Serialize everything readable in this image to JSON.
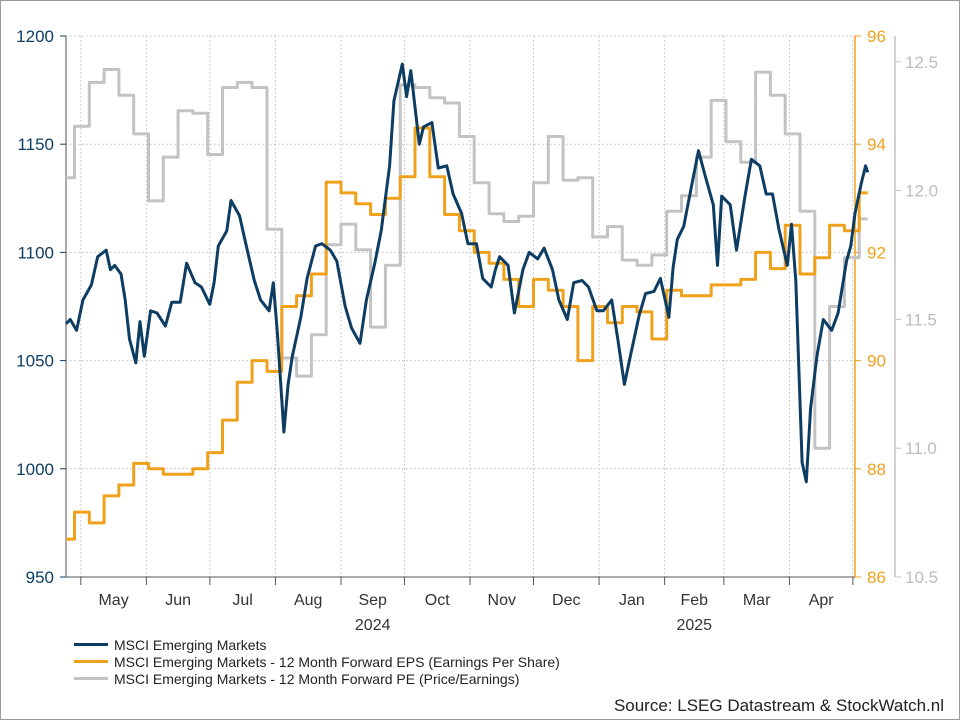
{
  "chart_data": {
    "type": "line",
    "x_axis": {
      "months": [
        "May",
        "Jun",
        "Jul",
        "Aug",
        "Sep",
        "Oct",
        "Nov",
        "Dec",
        "Jan",
        "Feb",
        "Mar",
        "Apr"
      ],
      "years": [
        {
          "label": "2024",
          "under": "Sep"
        },
        {
          "label": "2025",
          "under": "Feb"
        }
      ],
      "start": "2024-04-24",
      "end": "2025-05-02",
      "grid": true
    },
    "axes": {
      "left": {
        "series": "MSCI Emerging Markets",
        "min": 950,
        "max": 1200,
        "ticks": [
          950,
          1000,
          1050,
          1100,
          1150,
          1200
        ],
        "color": "#0e3d63"
      },
      "right1": {
        "series": "MSCI Emerging Markets - 12 Month Forward EPS (Earnings Per Share)",
        "min": 86,
        "max": 96,
        "ticks": [
          86,
          88,
          90,
          92,
          94,
          96
        ],
        "color": "#f0a11c"
      },
      "right2": {
        "series": "MSCI Emerging Markets - 12 Month Forward PE (Price/Earnings)",
        "min": 10.5,
        "max": 12.6,
        "ticks": [
          "10.5",
          "11.0",
          "11.5",
          "12.0",
          "12.5"
        ],
        "color": "#c3c3c3"
      }
    },
    "series": [
      {
        "name": "MSCI Emerging Markets",
        "axis": "left",
        "color": "#0e3d63",
        "points": [
          [
            "2024-04-24",
            1067
          ],
          [
            "2024-04-26",
            1069
          ],
          [
            "2024-04-29",
            1064
          ],
          [
            "2024-05-02",
            1078
          ],
          [
            "2024-05-06",
            1085
          ],
          [
            "2024-05-09",
            1098
          ],
          [
            "2024-05-13",
            1101
          ],
          [
            "2024-05-15",
            1092
          ],
          [
            "2024-05-17",
            1094
          ],
          [
            "2024-05-20",
            1090
          ],
          [
            "2024-05-22",
            1078
          ],
          [
            "2024-05-24",
            1060
          ],
          [
            "2024-05-27",
            1049
          ],
          [
            "2024-05-29",
            1068
          ],
          [
            "2024-05-31",
            1052
          ],
          [
            "2024-06-03",
            1073
          ],
          [
            "2024-06-06",
            1072
          ],
          [
            "2024-06-10",
            1066
          ],
          [
            "2024-06-13",
            1077
          ],
          [
            "2024-06-17",
            1077
          ],
          [
            "2024-06-20",
            1095
          ],
          [
            "2024-06-24",
            1086
          ],
          [
            "2024-06-27",
            1084
          ],
          [
            "2024-07-01",
            1076
          ],
          [
            "2024-07-03",
            1086
          ],
          [
            "2024-07-05",
            1103
          ],
          [
            "2024-07-09",
            1110
          ],
          [
            "2024-07-11",
            1124
          ],
          [
            "2024-07-15",
            1117
          ],
          [
            "2024-07-18",
            1104
          ],
          [
            "2024-07-22",
            1087
          ],
          [
            "2024-07-25",
            1078
          ],
          [
            "2024-07-29",
            1073
          ],
          [
            "2024-07-31",
            1086
          ],
          [
            "2024-08-02",
            1062
          ],
          [
            "2024-08-05",
            1017
          ],
          [
            "2024-08-07",
            1039
          ],
          [
            "2024-08-09",
            1052
          ],
          [
            "2024-08-13",
            1070
          ],
          [
            "2024-08-16",
            1088
          ],
          [
            "2024-08-20",
            1103
          ],
          [
            "2024-08-23",
            1104
          ],
          [
            "2024-08-27",
            1101
          ],
          [
            "2024-08-30",
            1096
          ],
          [
            "2024-09-03",
            1075
          ],
          [
            "2024-09-06",
            1065
          ],
          [
            "2024-09-10",
            1058
          ],
          [
            "2024-09-13",
            1078
          ],
          [
            "2024-09-17",
            1095
          ],
          [
            "2024-09-20",
            1110
          ],
          [
            "2024-09-24",
            1140
          ],
          [
            "2024-09-26",
            1170
          ],
          [
            "2024-09-30",
            1187
          ],
          [
            "2024-10-02",
            1172
          ],
          [
            "2024-10-04",
            1184
          ],
          [
            "2024-10-08",
            1150
          ],
          [
            "2024-10-10",
            1158
          ],
          [
            "2024-10-14",
            1160
          ],
          [
            "2024-10-17",
            1139
          ],
          [
            "2024-10-21",
            1140
          ],
          [
            "2024-10-24",
            1127
          ],
          [
            "2024-10-28",
            1118
          ],
          [
            "2024-10-31",
            1104
          ],
          [
            "2024-11-04",
            1104
          ],
          [
            "2024-11-07",
            1088
          ],
          [
            "2024-11-11",
            1084
          ],
          [
            "2024-11-13",
            1092
          ],
          [
            "2024-11-15",
            1098
          ],
          [
            "2024-11-19",
            1094
          ],
          [
            "2024-11-22",
            1072
          ],
          [
            "2024-11-26",
            1092
          ],
          [
            "2024-11-29",
            1100
          ],
          [
            "2024-12-03",
            1097
          ],
          [
            "2024-12-06",
            1102
          ],
          [
            "2024-12-10",
            1092
          ],
          [
            "2024-12-13",
            1078
          ],
          [
            "2024-12-17",
            1069
          ],
          [
            "2024-12-20",
            1086
          ],
          [
            "2024-12-24",
            1087
          ],
          [
            "2024-12-27",
            1084
          ],
          [
            "2024-12-31",
            1073
          ],
          [
            "2025-01-03",
            1073
          ],
          [
            "2025-01-07",
            1078
          ],
          [
            "2025-01-10",
            1059
          ],
          [
            "2025-01-13",
            1039
          ],
          [
            "2025-01-16",
            1053
          ],
          [
            "2025-01-20",
            1071
          ],
          [
            "2025-01-23",
            1081
          ],
          [
            "2025-01-27",
            1082
          ],
          [
            "2025-01-30",
            1088
          ],
          [
            "2025-02-03",
            1070
          ],
          [
            "2025-02-05",
            1093
          ],
          [
            "2025-02-07",
            1106
          ],
          [
            "2025-02-10",
            1112
          ],
          [
            "2025-02-13",
            1127
          ],
          [
            "2025-02-17",
            1147
          ],
          [
            "2025-02-20",
            1136
          ],
          [
            "2025-02-24",
            1122
          ],
          [
            "2025-02-26",
            1094
          ],
          [
            "2025-02-28",
            1126
          ],
          [
            "2025-03-04",
            1122
          ],
          [
            "2025-03-07",
            1101
          ],
          [
            "2025-03-11",
            1126
          ],
          [
            "2025-03-14",
            1143
          ],
          [
            "2025-03-18",
            1140
          ],
          [
            "2025-03-21",
            1127
          ],
          [
            "2025-03-24",
            1127
          ],
          [
            "2025-03-27",
            1111
          ],
          [
            "2025-03-31",
            1094
          ],
          [
            "2025-04-02",
            1113
          ],
          [
            "2025-04-04",
            1087
          ],
          [
            "2025-04-07",
            1003
          ],
          [
            "2025-04-09",
            994
          ],
          [
            "2025-04-11",
            1028
          ],
          [
            "2025-04-14",
            1052
          ],
          [
            "2025-04-17",
            1069
          ],
          [
            "2025-04-21",
            1064
          ],
          [
            "2025-04-24",
            1072
          ],
          [
            "2025-04-28",
            1096
          ],
          [
            "2025-04-30",
            1103
          ],
          [
            "2025-05-02",
            1118
          ],
          [
            "2025-05-05",
            1132
          ],
          [
            "2025-05-07",
            1140
          ],
          [
            "2025-05-08",
            1137
          ]
        ]
      },
      {
        "name": "MSCI Emerging Markets - 12 Month Forward EPS (Earnings Per Share)",
        "axis": "right1",
        "color": "#f0a11c",
        "points": [
          [
            "2024-04-24",
            86.7
          ],
          [
            "2024-04-28",
            87.2
          ],
          [
            "2024-05-05",
            87.0
          ],
          [
            "2024-05-12",
            87.5
          ],
          [
            "2024-05-19",
            87.7
          ],
          [
            "2024-05-26",
            88.1
          ],
          [
            "2024-06-02",
            88.0
          ],
          [
            "2024-06-09",
            87.9
          ],
          [
            "2024-06-23",
            88.0
          ],
          [
            "2024-06-30",
            88.3
          ],
          [
            "2024-07-07",
            88.9
          ],
          [
            "2024-07-14",
            89.6
          ],
          [
            "2024-07-21",
            90.0
          ],
          [
            "2024-07-28",
            89.8
          ],
          [
            "2024-08-04",
            91.0
          ],
          [
            "2024-08-11",
            91.2
          ],
          [
            "2024-08-18",
            91.6
          ],
          [
            "2024-08-25",
            93.3
          ],
          [
            "2024-09-01",
            93.1
          ],
          [
            "2024-09-08",
            92.9
          ],
          [
            "2024-09-15",
            92.7
          ],
          [
            "2024-09-22",
            93.0
          ],
          [
            "2024-09-29",
            93.4
          ],
          [
            "2024-10-06",
            94.3
          ],
          [
            "2024-10-13",
            93.4
          ],
          [
            "2024-10-20",
            92.7
          ],
          [
            "2024-10-27",
            92.4
          ],
          [
            "2024-11-03",
            92.0
          ],
          [
            "2024-11-10",
            91.8
          ],
          [
            "2024-11-17",
            91.5
          ],
          [
            "2024-11-24",
            91.0
          ],
          [
            "2024-12-01",
            91.5
          ],
          [
            "2024-12-08",
            91.3
          ],
          [
            "2024-12-15",
            91.0
          ],
          [
            "2024-12-22",
            90.0
          ],
          [
            "2024-12-29",
            91.0
          ],
          [
            "2025-01-05",
            90.7
          ],
          [
            "2025-01-12",
            91.0
          ],
          [
            "2025-01-19",
            90.9
          ],
          [
            "2025-01-26",
            90.4
          ],
          [
            "2025-02-02",
            91.3
          ],
          [
            "2025-02-09",
            91.2
          ],
          [
            "2025-02-16",
            91.2
          ],
          [
            "2025-02-23",
            91.4
          ],
          [
            "2025-03-02",
            91.4
          ],
          [
            "2025-03-09",
            91.5
          ],
          [
            "2025-03-16",
            92.0
          ],
          [
            "2025-03-23",
            91.7
          ],
          [
            "2025-03-30",
            92.5
          ],
          [
            "2025-04-06",
            91.6
          ],
          [
            "2025-04-13",
            91.9
          ],
          [
            "2025-04-20",
            92.5
          ],
          [
            "2025-04-27",
            92.4
          ],
          [
            "2025-05-04",
            93.1
          ],
          [
            "2025-05-08",
            93.1
          ]
        ]
      },
      {
        "name": "MSCI Emerging Markets - 12 Month Forward PE (Price/Earnings)",
        "axis": "right2",
        "color": "#c3c3c3",
        "points": [
          [
            "2024-04-24",
            12.05
          ],
          [
            "2024-04-28",
            12.25
          ],
          [
            "2024-05-05",
            12.42
          ],
          [
            "2024-05-12",
            12.47
          ],
          [
            "2024-05-19",
            12.37
          ],
          [
            "2024-05-26",
            12.22
          ],
          [
            "2024-06-02",
            11.96
          ],
          [
            "2024-06-09",
            12.13
          ],
          [
            "2024-06-16",
            12.31
          ],
          [
            "2024-06-23",
            12.3
          ],
          [
            "2024-06-30",
            12.14
          ],
          [
            "2024-07-07",
            12.4
          ],
          [
            "2024-07-14",
            12.42
          ],
          [
            "2024-07-21",
            12.4
          ],
          [
            "2024-07-28",
            11.85
          ],
          [
            "2024-08-04",
            11.35
          ],
          [
            "2024-08-11",
            11.28
          ],
          [
            "2024-08-18",
            11.44
          ],
          [
            "2024-08-25",
            11.79
          ],
          [
            "2024-09-01",
            11.87
          ],
          [
            "2024-09-08",
            11.77
          ],
          [
            "2024-09-15",
            11.47
          ],
          [
            "2024-09-22",
            11.71
          ],
          [
            "2024-09-29",
            12.41
          ],
          [
            "2024-10-06",
            12.4
          ],
          [
            "2024-10-13",
            12.36
          ],
          [
            "2024-10-20",
            12.34
          ],
          [
            "2024-10-27",
            12.21
          ],
          [
            "2024-11-03",
            12.03
          ],
          [
            "2024-11-10",
            11.91
          ],
          [
            "2024-11-17",
            11.88
          ],
          [
            "2024-11-24",
            11.9
          ],
          [
            "2024-12-01",
            12.03
          ],
          [
            "2024-12-08",
            12.21
          ],
          [
            "2024-12-15",
            12.04
          ],
          [
            "2024-12-22",
            12.05
          ],
          [
            "2024-12-29",
            11.82
          ],
          [
            "2025-01-05",
            11.86
          ],
          [
            "2025-01-12",
            11.73
          ],
          [
            "2025-01-19",
            11.71
          ],
          [
            "2025-01-26",
            11.75
          ],
          [
            "2025-02-02",
            11.92
          ],
          [
            "2025-02-09",
            11.98
          ],
          [
            "2025-02-16",
            12.13
          ],
          [
            "2025-02-23",
            12.35
          ],
          [
            "2025-03-02",
            12.19
          ],
          [
            "2025-03-09",
            12.11
          ],
          [
            "2025-03-16",
            12.46
          ],
          [
            "2025-03-23",
            12.37
          ],
          [
            "2025-03-30",
            12.22
          ],
          [
            "2025-04-06",
            11.92
          ],
          [
            "2025-04-13",
            11.0
          ],
          [
            "2025-04-20",
            11.55
          ],
          [
            "2025-04-27",
            11.74
          ],
          [
            "2025-05-04",
            11.89
          ],
          [
            "2025-05-08",
            11.89
          ]
        ]
      }
    ],
    "legend_position": "bottom-left",
    "source": "Source: LSEG Datastream & StockWatch.nl"
  }
}
